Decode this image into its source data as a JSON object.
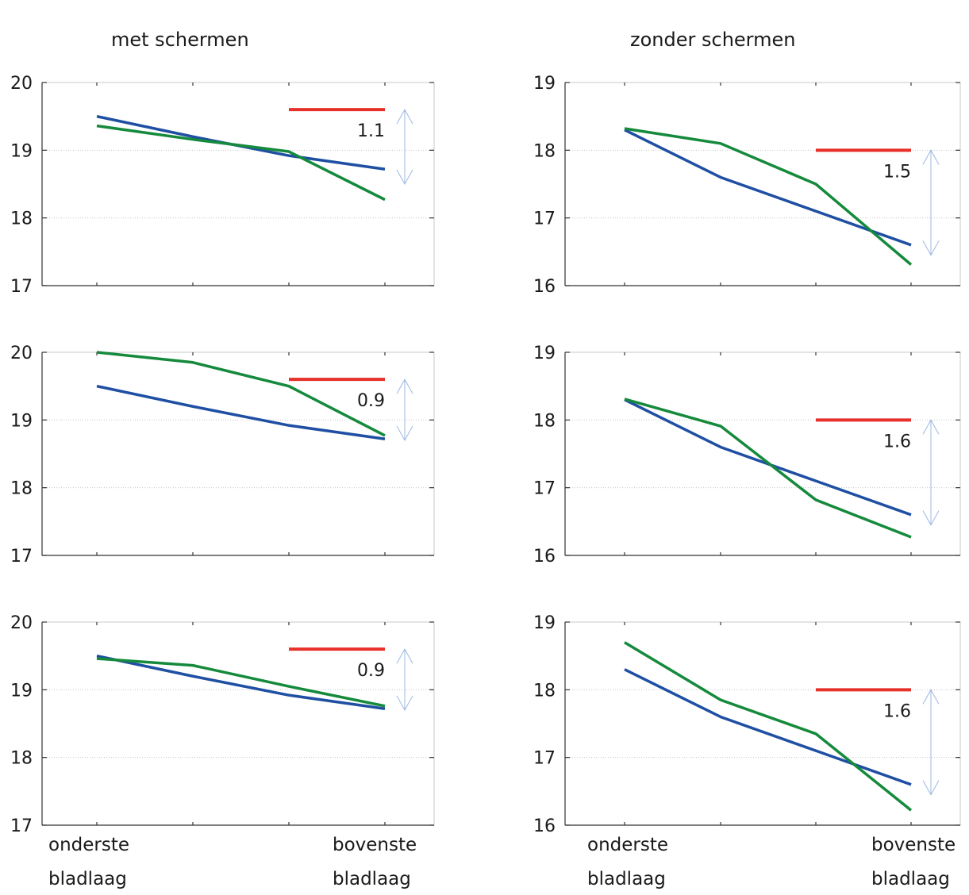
{
  "titles": {
    "left": "met schermen",
    "right": "zonder schermen"
  },
  "categories": {
    "first_line1": "onderste",
    "first_line2": "bladlaag",
    "last_line1": "bovenste",
    "last_line2": "bladlaag"
  },
  "colors": {
    "blue": "#1f4fa3",
    "green": "#158a3c",
    "red": "#e8302a",
    "arrow": "#9db7e0",
    "grid": "#bdbdbd",
    "axis": "#333333"
  },
  "chart_data": [
    {
      "type": "line",
      "x": [
        1,
        2,
        3,
        4
      ],
      "ylim": [
        17,
        20
      ],
      "yticks": [
        17,
        18,
        19,
        20
      ],
      "series": [
        {
          "color": "blue",
          "values": [
            19.5,
            19.2,
            18.92,
            18.72
          ]
        },
        {
          "color": "green",
          "values": [
            19.36,
            19.16,
            18.98,
            18.27
          ]
        }
      ],
      "red_level": 19.6,
      "arrow": [
        19.6,
        18.5
      ],
      "annotation": "1.1"
    },
    {
      "type": "line",
      "x": [
        1,
        2,
        3,
        4
      ],
      "ylim": [
        16,
        19
      ],
      "yticks": [
        16,
        17,
        18,
        19
      ],
      "series": [
        {
          "color": "blue",
          "values": [
            18.3,
            17.6,
            17.1,
            16.6
          ]
        },
        {
          "color": "green",
          "values": [
            18.32,
            18.1,
            17.5,
            16.31
          ]
        }
      ],
      "red_level": 18.0,
      "arrow": [
        18.0,
        16.45
      ],
      "annotation": "1.5"
    },
    {
      "type": "line",
      "x": [
        1,
        2,
        3,
        4
      ],
      "ylim": [
        17,
        20
      ],
      "yticks": [
        17,
        18,
        19,
        20
      ],
      "series": [
        {
          "color": "blue",
          "values": [
            19.5,
            19.2,
            18.92,
            18.72
          ]
        },
        {
          "color": "green",
          "values": [
            20.0,
            19.85,
            19.5,
            18.77
          ]
        }
      ],
      "red_level": 19.6,
      "arrow": [
        19.6,
        18.7
      ],
      "annotation": "0.9"
    },
    {
      "type": "line",
      "x": [
        1,
        2,
        3,
        4
      ],
      "ylim": [
        16,
        19
      ],
      "yticks": [
        16,
        17,
        18,
        19
      ],
      "series": [
        {
          "color": "blue",
          "values": [
            18.3,
            17.6,
            17.1,
            16.6
          ]
        },
        {
          "color": "green",
          "values": [
            18.31,
            17.91,
            16.82,
            16.27
          ]
        }
      ],
      "red_level": 18.0,
      "arrow": [
        18.0,
        16.45
      ],
      "annotation": "1.6"
    },
    {
      "type": "line",
      "x": [
        1,
        2,
        3,
        4
      ],
      "ylim": [
        17,
        20
      ],
      "yticks": [
        17,
        18,
        19,
        20
      ],
      "series": [
        {
          "color": "blue",
          "values": [
            19.5,
            19.2,
            18.92,
            18.72
          ]
        },
        {
          "color": "green",
          "values": [
            19.46,
            19.36,
            19.05,
            18.76
          ]
        }
      ],
      "red_level": 19.6,
      "arrow": [
        19.6,
        18.7
      ],
      "annotation": "0.9"
    },
    {
      "type": "line",
      "x": [
        1,
        2,
        3,
        4
      ],
      "ylim": [
        16,
        19
      ],
      "yticks": [
        16,
        17,
        18,
        19
      ],
      "series": [
        {
          "color": "blue",
          "values": [
            18.3,
            17.6,
            17.1,
            16.6
          ]
        },
        {
          "color": "green",
          "values": [
            18.7,
            17.85,
            17.35,
            16.22
          ]
        }
      ],
      "red_level": 18.0,
      "arrow": [
        18.0,
        16.45
      ],
      "annotation": "1.6"
    }
  ]
}
